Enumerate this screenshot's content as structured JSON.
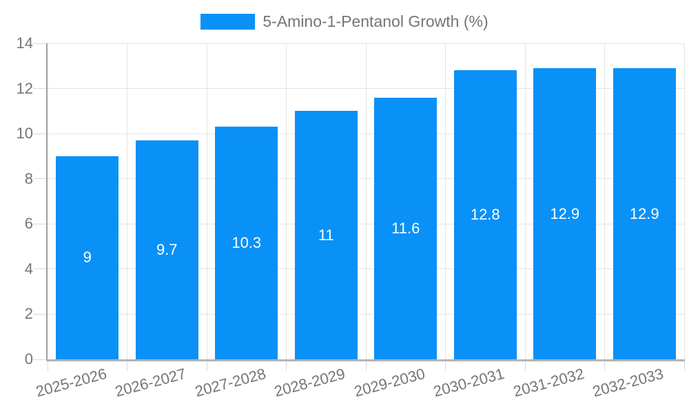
{
  "chart_data": {
    "type": "bar",
    "title": "5-Amino-1-Pentanol Growth (%)",
    "categories": [
      "2025-2026",
      "2026-2027",
      "2027-2028",
      "2028-2029",
      "2029-2030",
      "2030-2031",
      "2031-2032",
      "2032-2033"
    ],
    "series": [
      {
        "name": "5-Amino-1-Pentanol Growth (%)",
        "values": [
          9,
          9.7,
          10.3,
          11,
          11.6,
          12.8,
          12.9,
          12.9
        ]
      }
    ],
    "bar_value_labels": [
      "9",
      "9.7",
      "10.3",
      "11",
      "11.6",
      "12.8",
      "12.9",
      "12.9"
    ],
    "xlabel": "",
    "ylabel": "",
    "ylim": [
      0,
      14
    ],
    "yticks": [
      0,
      2,
      4,
      6,
      8,
      10,
      12,
      14
    ],
    "grid": true,
    "legend_position": "top"
  },
  "colors": {
    "bar": "#0991f7",
    "bar_label": "#ffffff",
    "grid": "#e4e4e4",
    "x_axis_line": "#b3b3b3",
    "y_axis_line": "#9e9e9e",
    "tick_mark": "#d9d9d9",
    "axis_text": "#757575",
    "background": "#ffffff"
  }
}
